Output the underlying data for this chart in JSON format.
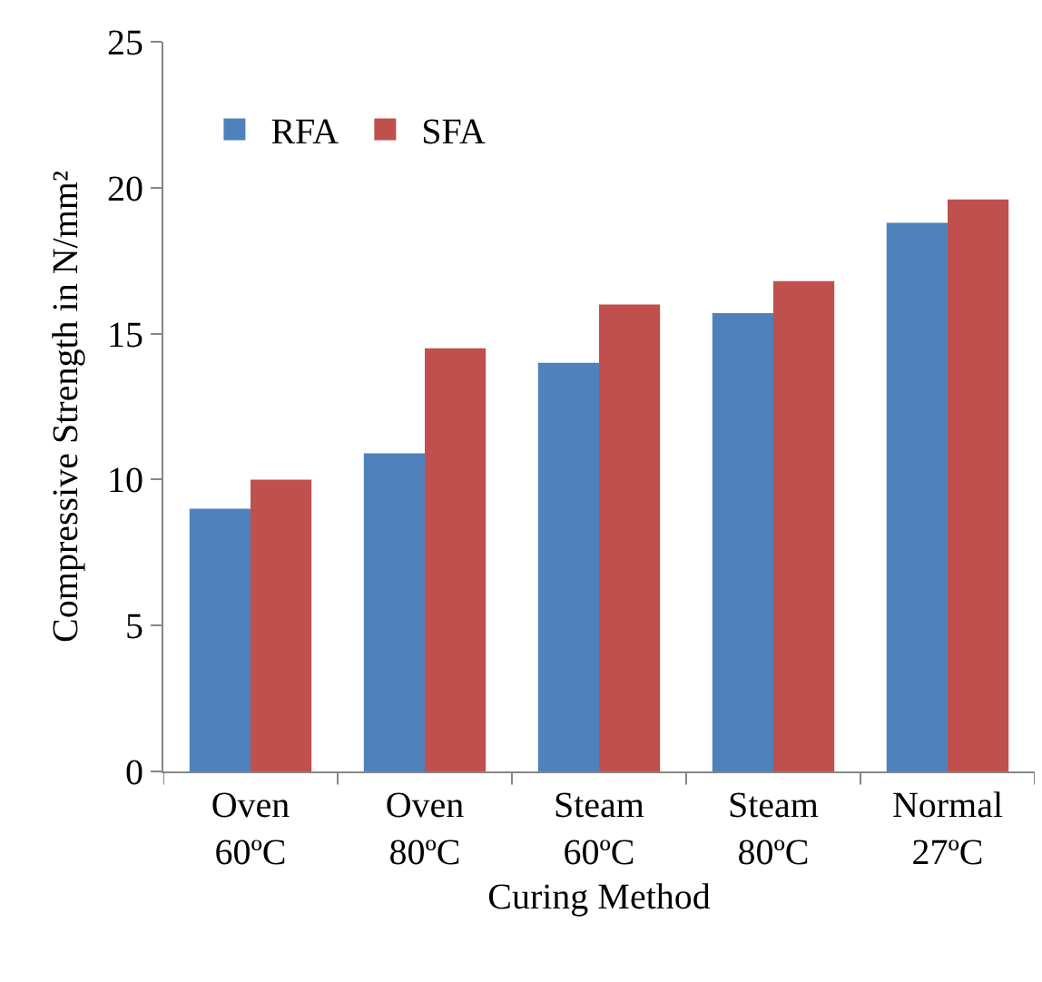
{
  "chart_data": {
    "type": "bar",
    "xlabel": "Curing Method",
    "ylabel": "Compressive Strength in N/mm²",
    "categories": [
      "Oven\n60ºC",
      "Oven\n80ºC",
      "Steam\n60ºC",
      "Steam\n80ºC",
      "Normal\n27ºC"
    ],
    "series": [
      {
        "name": "RFA",
        "color": "#4f81bd",
        "values": [
          9.0,
          10.9,
          14.0,
          15.7,
          18.8
        ]
      },
      {
        "name": "SFA",
        "color": "#c0504d",
        "values": [
          10.0,
          14.5,
          16.0,
          16.8,
          19.6
        ]
      }
    ],
    "ylim": [
      0,
      25
    ],
    "yticks": [
      0,
      5,
      10,
      15,
      20,
      25
    ],
    "grid": false,
    "legend": "top left"
  }
}
